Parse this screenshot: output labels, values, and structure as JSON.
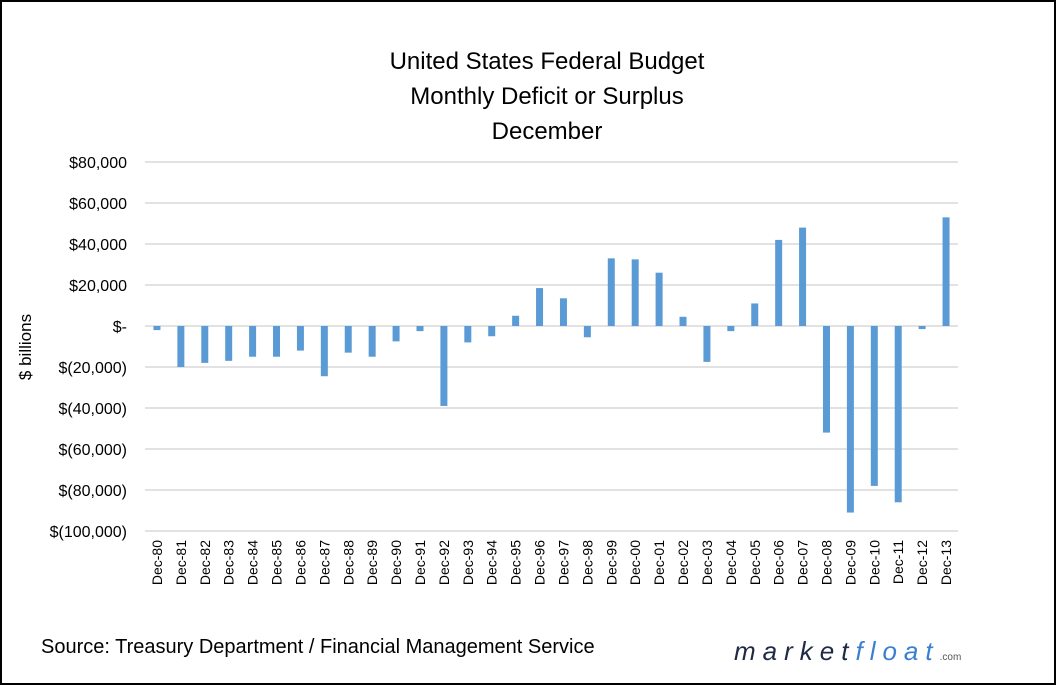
{
  "chart_data": {
    "type": "bar",
    "title_lines": [
      "United States Federal Budget",
      "Monthly Deficit or Surplus",
      "December"
    ],
    "ylabel": "$ billions",
    "xlabel": "",
    "ylim": [
      -100000,
      80000
    ],
    "yticks": [
      80000,
      60000,
      40000,
      20000,
      0,
      -20000,
      -40000,
      -60000,
      -80000,
      -100000
    ],
    "ytick_labels": [
      "$80,000",
      "$60,000",
      "$40,000",
      "$20,000",
      "$-",
      "$(20,000)",
      "$(40,000)",
      "$(60,000)",
      "$(80,000)",
      "$(100,000)"
    ],
    "grid": true,
    "bar_color": "#5b9bd5",
    "grid_color": "#d9d9d9",
    "categories": [
      "Dec-80",
      "Dec-81",
      "Dec-82",
      "Dec-83",
      "Dec-84",
      "Dec-85",
      "Dec-86",
      "Dec-87",
      "Dec-88",
      "Dec-89",
      "Dec-90",
      "Dec-91",
      "Dec-92",
      "Dec-93",
      "Dec-94",
      "Dec-95",
      "Dec-96",
      "Dec-97",
      "Dec-98",
      "Dec-99",
      "Dec-00",
      "Dec-01",
      "Dec-02",
      "Dec-03",
      "Dec-04",
      "Dec-05",
      "Dec-06",
      "Dec-07",
      "Dec-08",
      "Dec-09",
      "Dec-10",
      "Dec-11",
      "Dec-12",
      "Dec-13"
    ],
    "values": [
      -2000,
      -20000,
      -18000,
      -17000,
      -15000,
      -15000,
      -12000,
      -24500,
      -13000,
      -15000,
      -7500,
      -2500,
      -39000,
      -8000,
      -5000,
      5000,
      18500,
      13500,
      -5500,
      33000,
      32500,
      26000,
      4500,
      -17500,
      -2500,
      11000,
      42000,
      48000,
      -52000,
      -91000,
      -78000,
      -86000,
      -1500,
      53000
    ]
  },
  "footer": {
    "source": "Source: Treasury Department / Financial Management Service",
    "logo_market": "market",
    "logo_float": "float",
    "logo_com": ".com"
  }
}
